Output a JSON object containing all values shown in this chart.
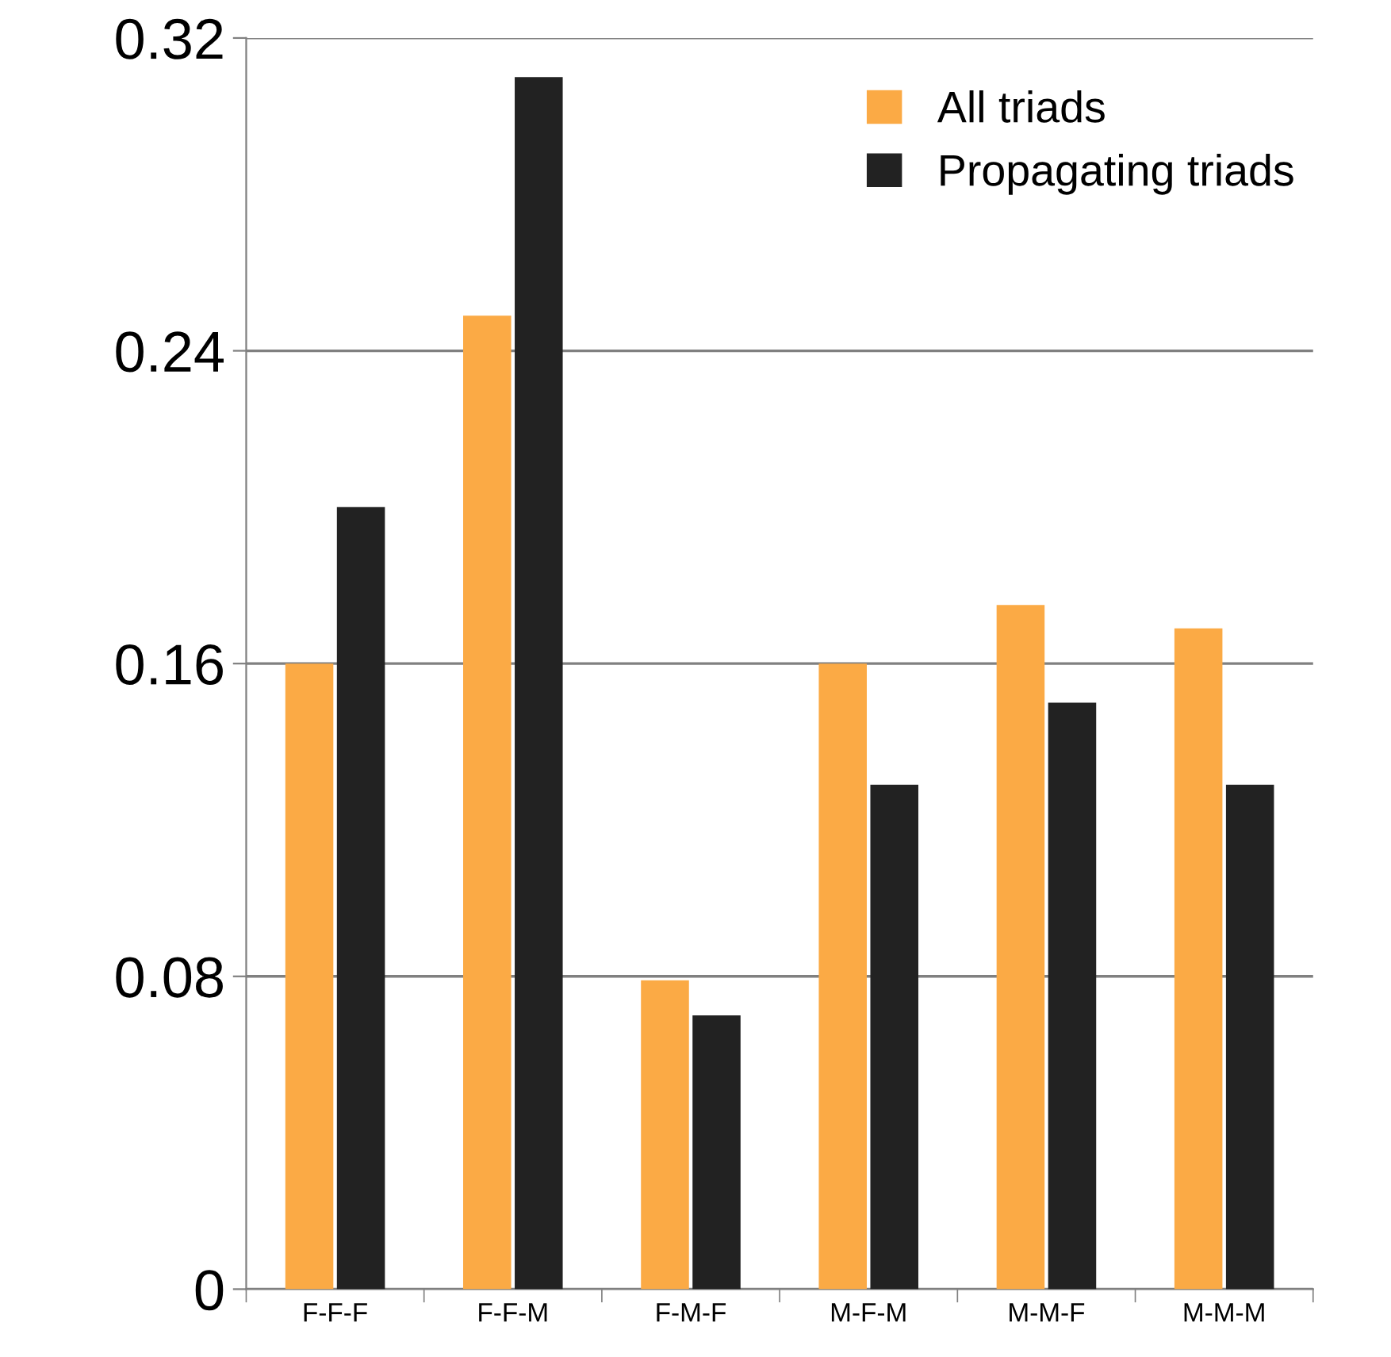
{
  "chart_data": {
    "type": "bar",
    "categories": [
      "F-F-F",
      "F-F-M",
      "F-M-F",
      "M-F-M",
      "M-M-F",
      "M-M-M"
    ],
    "series": [
      {
        "name": "All triads",
        "color": "#fbaa45",
        "values": [
          0.16,
          0.249,
          0.079,
          0.16,
          0.175,
          0.169
        ]
      },
      {
        "name": "Propagating triads",
        "color": "#222222",
        "values": [
          0.2,
          0.31,
          0.07,
          0.129,
          0.15,
          0.129
        ]
      }
    ],
    "ylim": [
      0,
      0.32
    ],
    "yticks": [
      0,
      0.08,
      0.16,
      0.24,
      0.32
    ],
    "grid": "y",
    "legend": "top right"
  }
}
